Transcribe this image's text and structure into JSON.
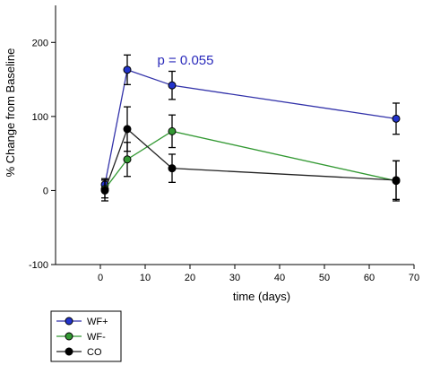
{
  "chart_data": {
    "type": "line",
    "xlabel": "time (days)",
    "ylabel": "% Change from Baseline",
    "xlim": [
      -10,
      70
    ],
    "ylim": [
      -100,
      250
    ],
    "xticks": [
      0,
      10,
      20,
      30,
      40,
      50,
      60,
      70
    ],
    "yticks": [
      -100,
      0,
      100,
      200
    ],
    "grid": false,
    "legend_position": "bottom-left",
    "annotation": {
      "text": "p = 0.055",
      "x": 19,
      "y": 170
    },
    "series": [
      {
        "name": "WF+",
        "color": "#3333aa",
        "marker_fill": "#2233cc",
        "x": [
          1,
          6,
          16,
          66
        ],
        "y": [
          8,
          163,
          142,
          97
        ],
        "err": [
          8,
          20,
          19,
          21
        ]
      },
      {
        "name": "WF-",
        "color": "#339933",
        "marker_fill": "#339933",
        "x": [
          1,
          6,
          16,
          66
        ],
        "y": [
          2,
          42,
          80,
          13
        ],
        "err": [
          12,
          23,
          22,
          27
        ]
      },
      {
        "name": "CO",
        "color": "#222222",
        "marker_fill": "#000000",
        "x": [
          1,
          6,
          16,
          66
        ],
        "y": [
          0,
          83,
          30,
          14
        ],
        "err": [
          14,
          30,
          19,
          26
        ]
      }
    ]
  }
}
